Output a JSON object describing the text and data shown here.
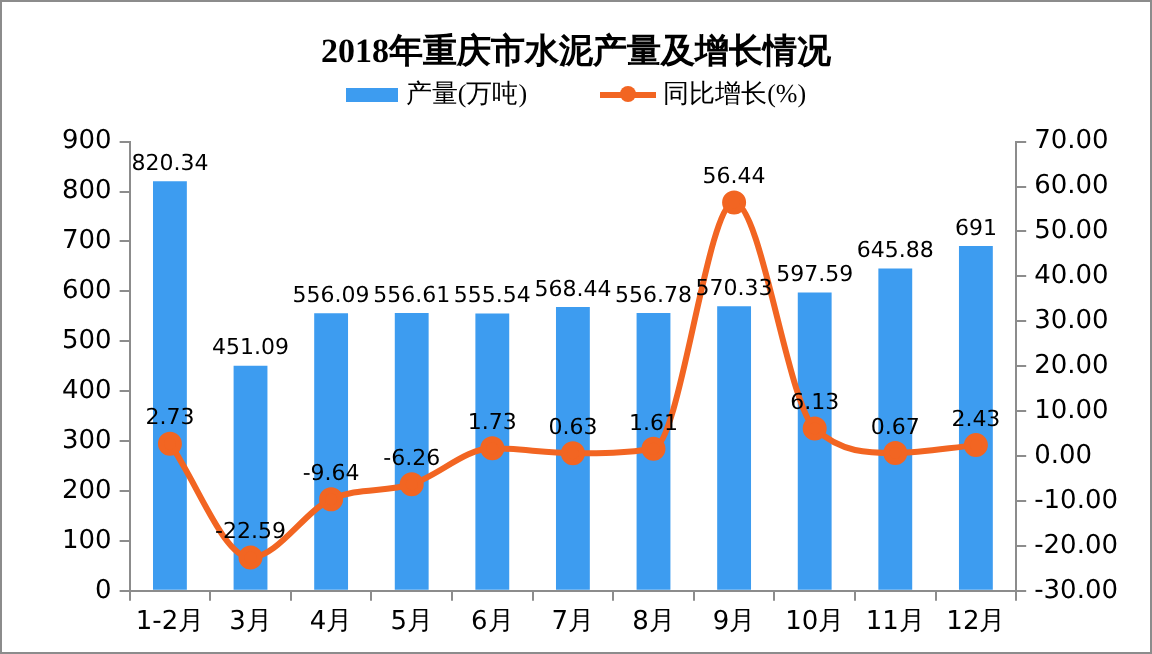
{
  "chart_data": {
    "type": "bar",
    "title": "2018年重庆市水泥产量及增长情况",
    "categories": [
      "1-2月",
      "3月",
      "4月",
      "5月",
      "6月",
      "7月",
      "8月",
      "9月",
      "10月",
      "11月",
      "12月"
    ],
    "series": [
      {
        "name": "产量(万吨)",
        "color": "#3d9cf0",
        "values": [
          820.34,
          451.09,
          556.09,
          556.61,
          555.54,
          568.44,
          556.78,
          570.33,
          597.59,
          645.88,
          691
        ]
      },
      {
        "name": "同比增长(%)",
        "type": "line",
        "axis": "y2",
        "color": "#f26522",
        "values": [
          2.73,
          -22.59,
          -9.64,
          -6.26,
          1.73,
          0.63,
          1.61,
          56.44,
          6.13,
          0.67,
          2.43
        ]
      }
    ],
    "ylim": [
      0,
      900
    ],
    "yticks": [
      0,
      100,
      200,
      300,
      400,
      500,
      600,
      700,
      800,
      900
    ],
    "y2lim": [
      -30,
      70
    ],
    "y2ticks": [
      {
        "value": -30,
        "label": "-30.00"
      },
      {
        "value": -20,
        "label": "-20.00"
      },
      {
        "value": -10,
        "label": "-10.00"
      },
      {
        "value": 0,
        "label": "0.00"
      },
      {
        "value": 10,
        "label": "10.00"
      },
      {
        "value": 20,
        "label": "20.00"
      },
      {
        "value": 30,
        "label": "30.00"
      },
      {
        "value": 40,
        "label": "40.00"
      },
      {
        "value": 50,
        "label": "50.00"
      },
      {
        "value": 60,
        "label": "60.00"
      },
      {
        "value": 70,
        "label": "70.00"
      }
    ],
    "data_labels": true,
    "legend": "top",
    "marker": "circle",
    "line_style": "solid"
  }
}
